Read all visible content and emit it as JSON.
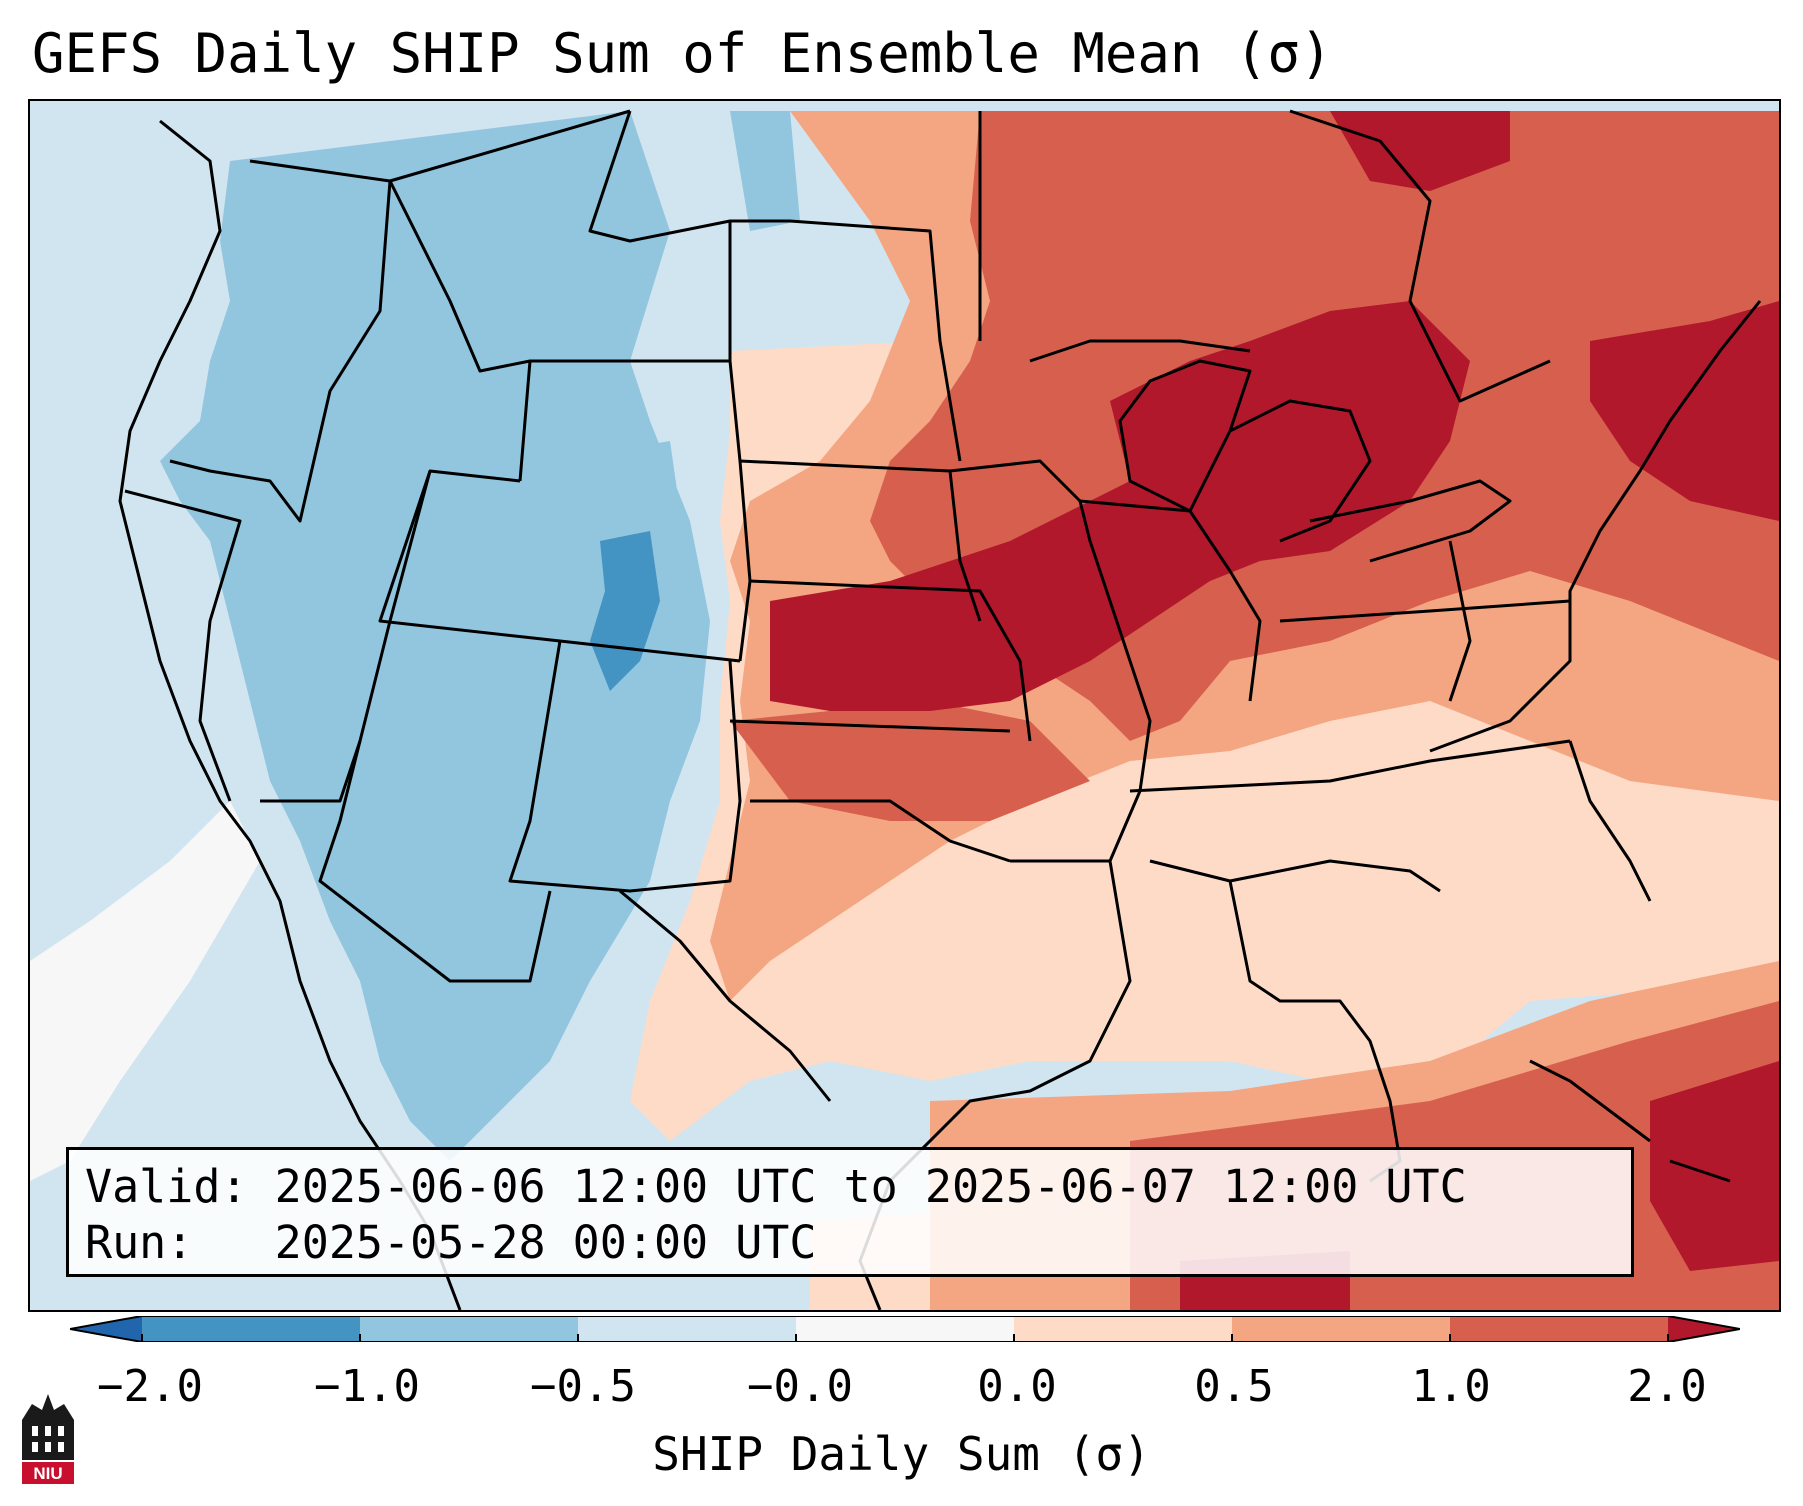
{
  "title": "GEFS Daily SHIP Sum of Ensemble Mean (σ)",
  "valid_line": "Valid: 2025-06-06 12:00 UTC to 2025-06-07 12:00 UTC",
  "run_line": "Run:   2025-05-28 00:00 UTC",
  "colorbar": {
    "label": "SHIP Daily Sum (σ)",
    "ticks": [
      "−2.0",
      "−1.0",
      "−0.5",
      "−0.0",
      "0.0",
      "0.5",
      "1.0",
      "2.0"
    ],
    "bins": [
      {
        "range": "< -2.0",
        "color": "#2166ac"
      },
      {
        "range": "-2.0 to -1.0",
        "color": "#4393c3"
      },
      {
        "range": "-1.0 to -0.5",
        "color": "#92c5de"
      },
      {
        "range": "-0.5 to -0.0",
        "color": "#d1e5f0"
      },
      {
        "range": "-0.0 to 0.0",
        "color": "#f7f7f7"
      },
      {
        "range": "0.0 to 0.5",
        "color": "#fddbc7"
      },
      {
        "range": "0.5 to 1.0",
        "color": "#f4a582"
      },
      {
        "range": "1.0 to 2.0",
        "color": "#d6604d"
      },
      {
        "range": "> 2.0",
        "color": "#b2182b"
      }
    ]
  },
  "logo": {
    "text": "NIU",
    "icon": "niu-logo-icon"
  }
}
